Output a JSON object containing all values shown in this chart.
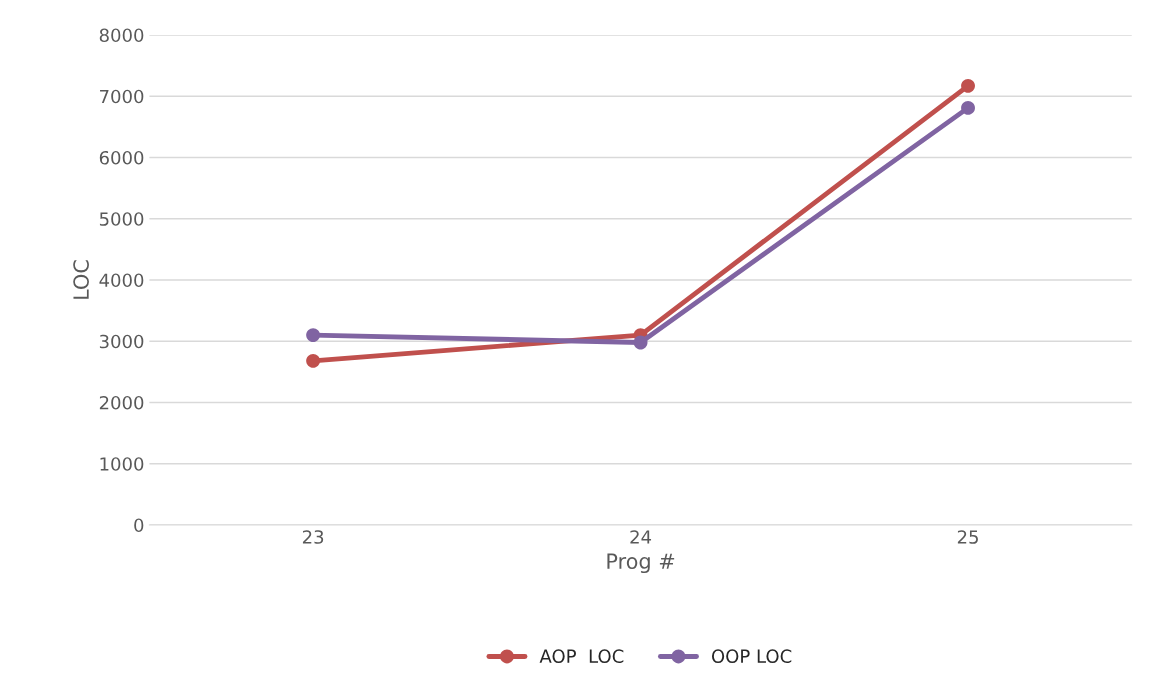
{
  "chart_data": {
    "type": "line",
    "xlabel": "Prog #",
    "ylabel": "LOC",
    "categories": [
      "23",
      "24",
      "25"
    ],
    "series": [
      {
        "name": "AOP  LOC",
        "color": "#c0504d",
        "values": [
          2680,
          3100,
          7170
        ]
      },
      {
        "name": "OOP LOC",
        "color": "#8064a2",
        "values": [
          3100,
          2980,
          6810
        ]
      }
    ],
    "ylim": [
      0,
      8000
    ],
    "yticks": [
      0,
      1000,
      2000,
      3000,
      4000,
      5000,
      6000,
      7000,
      8000
    ],
    "grid": "y",
    "legend": "bottom",
    "marker": "circle",
    "line_style": "solid"
  }
}
